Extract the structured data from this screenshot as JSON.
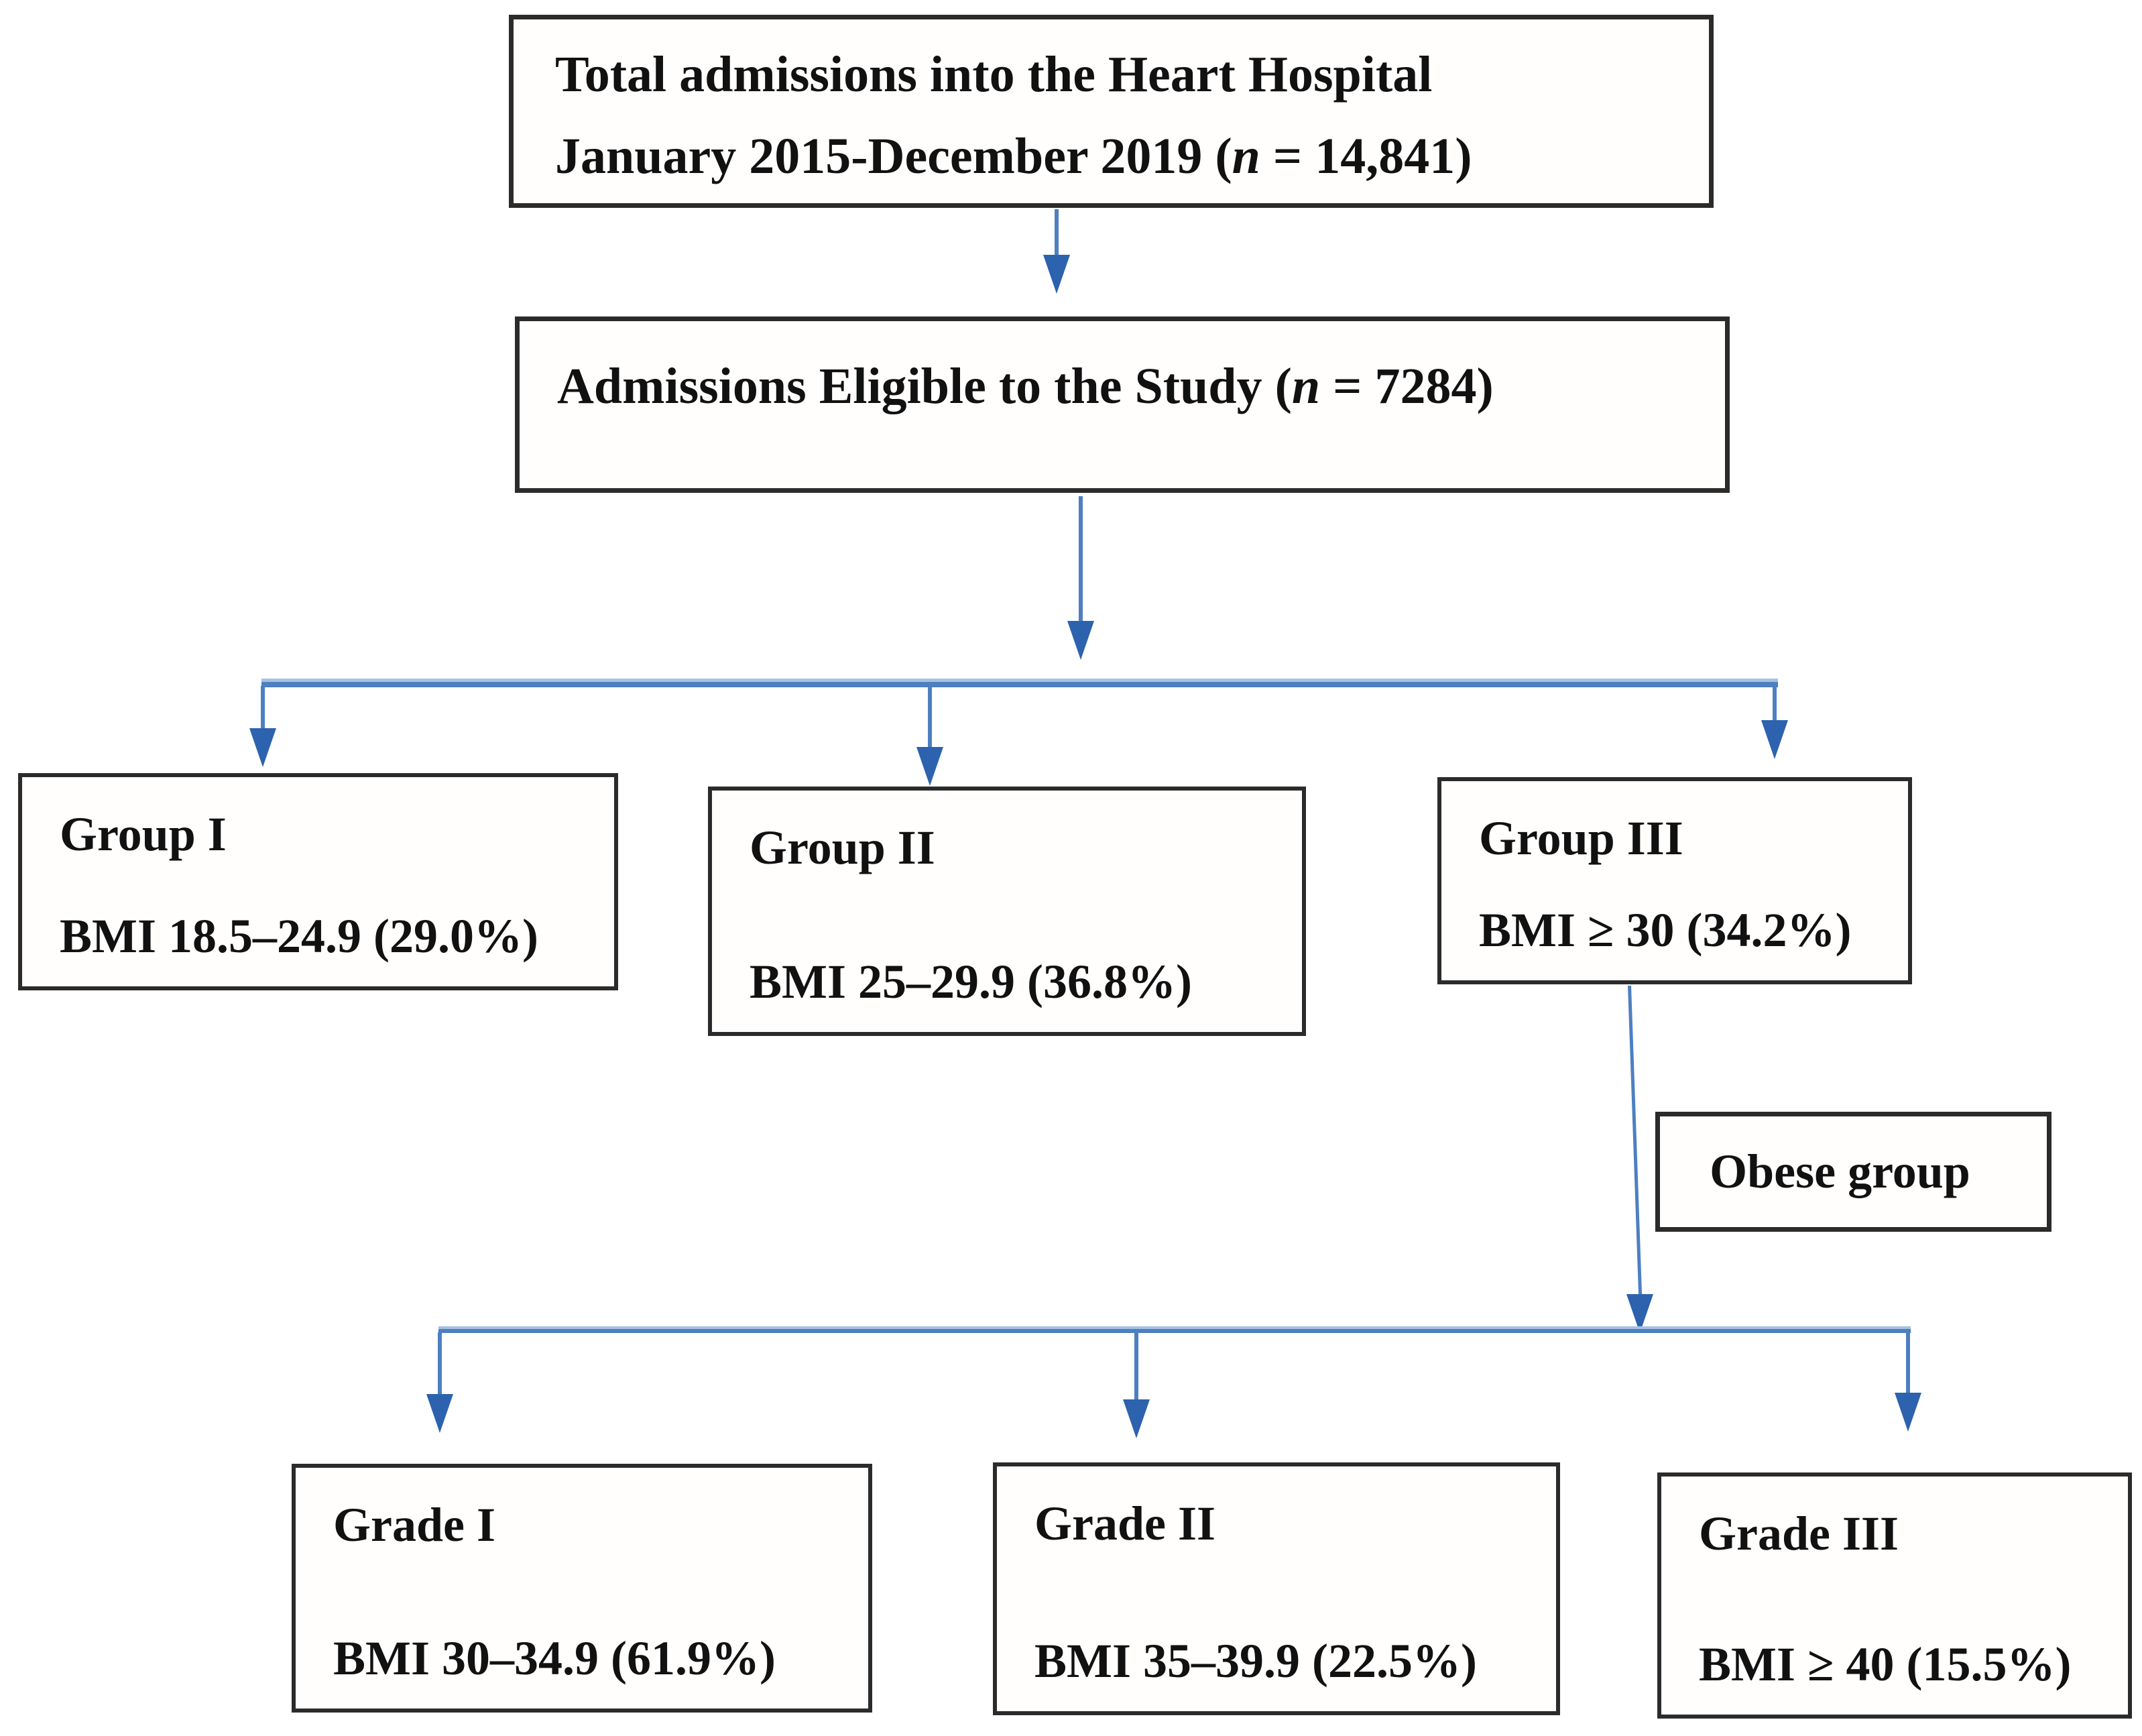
{
  "colors": {
    "line_blue": "#4d7fc1",
    "line_blue_light": "#a6c0e3",
    "arrow_blue": "#2d62ae",
    "box_border": "#2b2b2b",
    "text_color": "#111111"
  },
  "flowchart": {
    "total_box": {
      "line1": "Total admissions into the Heart Hospital",
      "line2_prefix": "January 2015-December 2019 (",
      "n_var": "n",
      "line2_suffix": " = 14,841)"
    },
    "eligible_box": {
      "prefix": "Admissions Eligible to the Study (",
      "n_var": "n",
      "suffix": " = 7284)"
    },
    "groups": [
      {
        "title": "Group I",
        "detail": "BMI 18.5–24.9 (29.0%)"
      },
      {
        "title": "Group II",
        "detail": "BMI 25–29.9 (36.8%)"
      },
      {
        "title": "Group III",
        "detail": "BMI ≥ 30 (34.2%)"
      }
    ],
    "obese_box": {
      "label": "Obese group"
    },
    "grades": [
      {
        "title": "Grade I",
        "detail": "BMI 30–34.9 (61.9%)"
      },
      {
        "title": "Grade II",
        "detail": "BMI 35–39.9 (22.5%)"
      },
      {
        "title": "Grade III",
        "detail": "BMI ≥ 40 (15.5%)"
      }
    ]
  }
}
